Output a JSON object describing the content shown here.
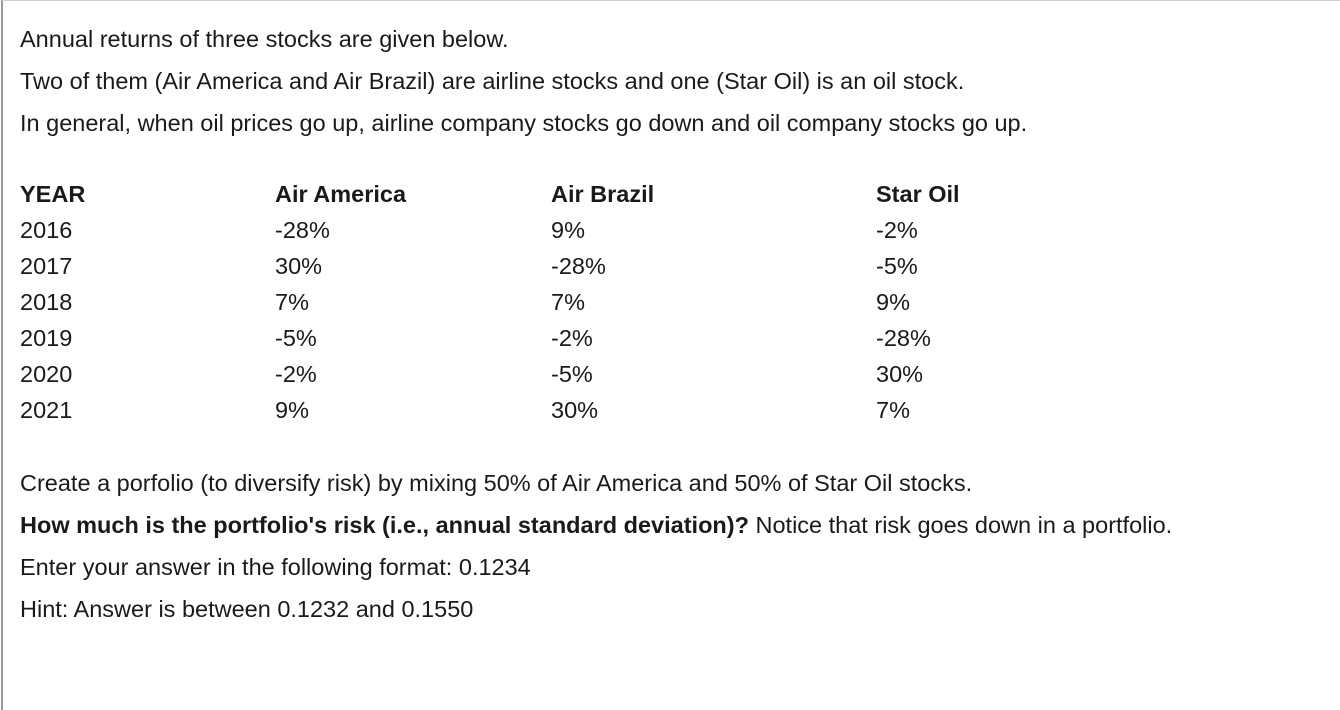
{
  "intro": [
    "Annual returns of three stocks are given below.",
    "Two of them (Air America and Air Brazil) are airline stocks and one (Star Oil) is an oil stock.",
    "In general, when oil prices go up, airline company stocks go down and oil company stocks go up."
  ],
  "table": {
    "header": [
      "YEAR",
      "Air America",
      "Air Brazil",
      "Star Oil"
    ],
    "rows": [
      [
        "2016",
        "-28%",
        "9%",
        "-2%"
      ],
      [
        "2017",
        "30%",
        "-28%",
        "-5%"
      ],
      [
        "2018",
        "7%",
        "7%",
        "9%"
      ],
      [
        "2019",
        "-5%",
        "-2%",
        "-28%"
      ],
      [
        "2020",
        "-2%",
        "-5%",
        "30%"
      ],
      [
        "2021",
        "9%",
        "30%",
        "7%"
      ]
    ]
  },
  "question": {
    "task": "Create a porfolio (to diversify risk) by mixing 50% of Air America and 50% of Star Oil stocks.",
    "bold": "How much is the portfolio's risk (i.e., annual standard deviation)?",
    "note": "Notice that risk goes down in a portfolio.",
    "format": "Enter your answer in the following format: 0.1234",
    "hint": "Hint: Answer is between 0.1232 and 0.1550"
  }
}
